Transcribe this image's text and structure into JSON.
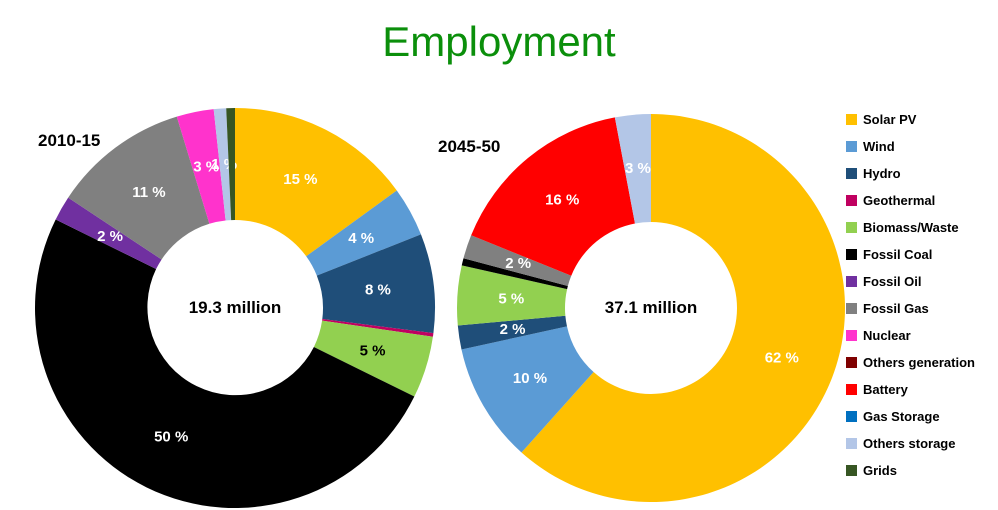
{
  "page": {
    "title": "Employment",
    "title_color": "#0B8F0B"
  },
  "legend": {
    "position": "right",
    "items": [
      {
        "label": "Solar PV",
        "color": "#FFC000"
      },
      {
        "label": "Wind",
        "color": "#5B9BD5"
      },
      {
        "label": "Hydro",
        "color": "#1F4E79"
      },
      {
        "label": "Geothermal",
        "color": "#C00060"
      },
      {
        "label": "Biomass/Waste",
        "color": "#92D050"
      },
      {
        "label": "Fossil Coal",
        "color": "#000000"
      },
      {
        "label": "Fossil Oil",
        "color": "#7030A0"
      },
      {
        "label": "Fossil Gas",
        "color": "#808080"
      },
      {
        "label": "Nuclear",
        "color": "#FF33CC"
      },
      {
        "label": "Others generation",
        "color": "#7F0000"
      },
      {
        "label": "Battery",
        "color": "#FF0000"
      },
      {
        "label": "Gas Storage",
        "color": "#0070C0"
      },
      {
        "label": "Others storage",
        "color": "#B3C6E7"
      },
      {
        "label": "Grids",
        "color": "#375623"
      }
    ]
  },
  "chart_data": [
    {
      "type": "pie",
      "variant": "donut",
      "title": "2010-15",
      "center_label": "19.3 million",
      "units": "%",
      "start_angle_deg": 0,
      "direction": "clockwise",
      "segments": [
        {
          "label": "Solar PV",
          "value": 15,
          "display": "15 %",
          "color": "#FFC000",
          "text_color": "#FFFFFF"
        },
        {
          "label": "Wind",
          "value": 4,
          "display": "4 %",
          "color": "#5B9BD5",
          "text_color": "#FFFFFF"
        },
        {
          "label": "Hydro",
          "value": 8,
          "display": "8 %",
          "color": "#1F4E79",
          "text_color": "#FFFFFF"
        },
        {
          "label": "Geothermal",
          "value": 0.3,
          "display": "",
          "color": "#C00060",
          "text_color": "#FFFFFF"
        },
        {
          "label": "Biomass/Waste",
          "value": 5,
          "display": "5 %",
          "color": "#92D050",
          "text_color": "#000000"
        },
        {
          "label": "Fossil Coal",
          "value": 50,
          "display": "50 %",
          "color": "#000000",
          "text_color": "#FFFFFF"
        },
        {
          "label": "Fossil Oil",
          "value": 2,
          "display": "2 %",
          "color": "#7030A0",
          "text_color": "#FFFFFF"
        },
        {
          "label": "Fossil Gas",
          "value": 11,
          "display": "11 %",
          "color": "#808080",
          "text_color": "#FFFFFF"
        },
        {
          "label": "Nuclear",
          "value": 3,
          "display": "3 %",
          "color": "#FF33CC",
          "text_color": "#FFFFFF"
        },
        {
          "label": "Others storage",
          "value": 1,
          "display": "1 %",
          "color": "#B3C6E7",
          "text_color": "#FFFFFF"
        },
        {
          "label": "Grids",
          "value": 0.7,
          "display": "",
          "color": "#375623",
          "text_color": "#FFFFFF"
        }
      ]
    },
    {
      "type": "pie",
      "variant": "donut",
      "title": "2045-50",
      "center_label": "37.1 million",
      "units": "%",
      "start_angle_deg": 0,
      "direction": "clockwise",
      "segments": [
        {
          "label": "Solar PV",
          "value": 62,
          "display": "62 %",
          "color": "#FFC000",
          "text_color": "#FFFFFF"
        },
        {
          "label": "Wind",
          "value": 10,
          "display": "10 %",
          "color": "#5B9BD5",
          "text_color": "#FFFFFF"
        },
        {
          "label": "Hydro",
          "value": 2,
          "display": "2 %",
          "color": "#1F4E79",
          "text_color": "#FFFFFF"
        },
        {
          "label": "Biomass/Waste",
          "value": 5,
          "display": "5 %",
          "color": "#92D050",
          "text_color": "#FFFFFF"
        },
        {
          "label": "Fossil Coal",
          "value": 0.6,
          "display": "",
          "color": "#000000",
          "text_color": "#FFFFFF"
        },
        {
          "label": "Fossil Gas",
          "value": 2,
          "display": "2 %",
          "color": "#808080",
          "text_color": "#FFFFFF"
        },
        {
          "label": "Battery",
          "value": 16,
          "display": "16 %",
          "color": "#FF0000",
          "text_color": "#FFFFFF"
        },
        {
          "label": "Others storage",
          "value": 3,
          "display": "3 %",
          "color": "#B3C6E7",
          "text_color": "#FFFFFF"
        }
      ]
    }
  ]
}
